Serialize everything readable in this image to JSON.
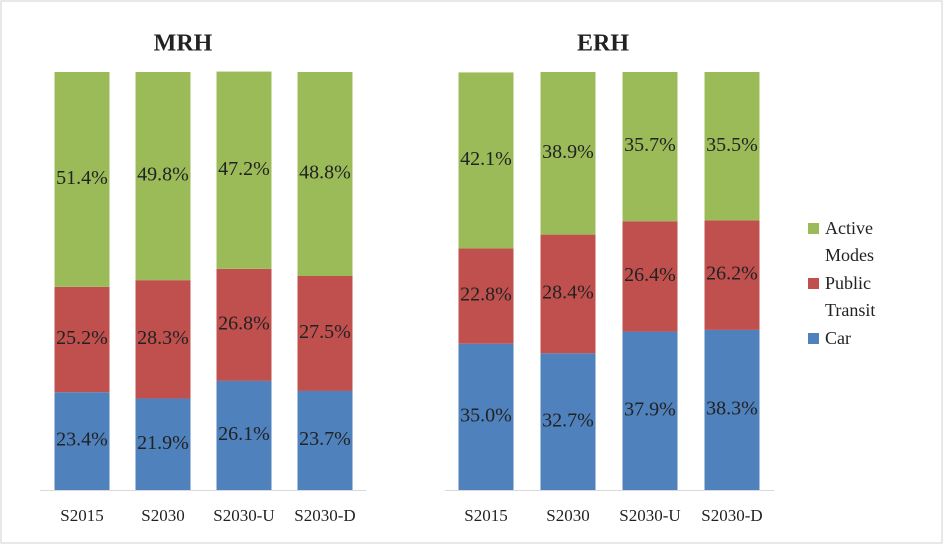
{
  "chart_data": [
    {
      "type": "stacked-bar",
      "title": "MRH",
      "categories": [
        "S2015",
        "S2030",
        "S2030-U",
        "S2030-D"
      ],
      "ylim": [
        0,
        100
      ],
      "series": [
        {
          "color": "#4f81bd",
          "values": [
            23.4,
            21.9,
            26.1,
            23.7
          ],
          "value_labels": [
            "23.4%",
            "21.9%",
            "26.1%",
            "23.7%"
          ]
        },
        {
          "color": "#c0504d",
          "values": [
            25.2,
            28.3,
            26.8,
            27.5
          ],
          "value_labels": [
            "25.2%",
            "28.3%",
            "26.8%",
            "27.5%"
          ]
        },
        {
          "color": "#9bbb59",
          "values": [
            51.4,
            49.8,
            47.2,
            48.8
          ],
          "value_labels": [
            "51.4%",
            "49.8%",
            "47.2%",
            "48.8%"
          ]
        }
      ]
    },
    {
      "type": "stacked-bar",
      "title": "ERH",
      "categories": [
        "S2015",
        "S2030",
        "S2030-U",
        "S2030-D"
      ],
      "ylim": [
        0,
        100
      ],
      "legend": "right",
      "series": [
        {
          "name": "Car",
          "color": "#4f81bd",
          "values": [
            35.0,
            32.7,
            37.9,
            38.3
          ],
          "value_labels": [
            "35.0%",
            "32.7%",
            "37.9%",
            "38.3%"
          ]
        },
        {
          "name": "Public Transit",
          "color": "#c0504d",
          "values": [
            22.8,
            28.4,
            26.4,
            26.2
          ],
          "value_labels": [
            "22.8%",
            "28.4%",
            "26.4%",
            "26.2%"
          ]
        },
        {
          "name": "Active Modes",
          "color": "#9bbb59",
          "values": [
            42.1,
            38.9,
            35.7,
            35.5
          ],
          "value_labels": [
            "42.1%",
            "38.9%",
            "35.7%",
            "35.5%"
          ]
        }
      ]
    }
  ]
}
